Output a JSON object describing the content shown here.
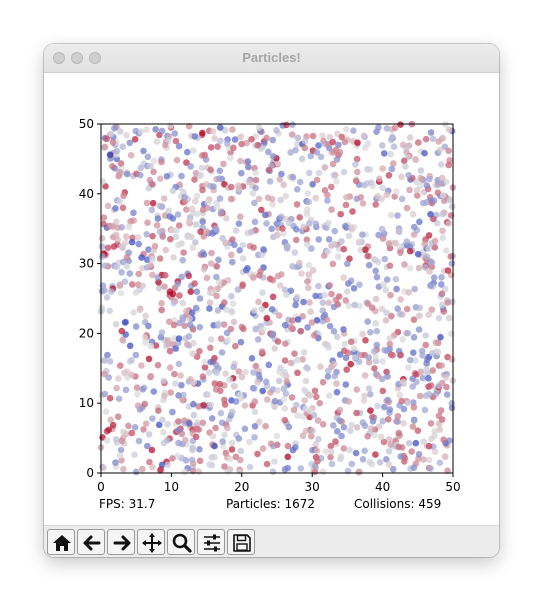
{
  "window": {
    "title": "Particles!"
  },
  "status": {
    "fps": "FPS: 31.7",
    "particles": "Particles: 1672",
    "collisions": "Collisions: 459"
  },
  "toolbar": {
    "items": [
      {
        "name": "home-icon"
      },
      {
        "name": "arrow-left-icon"
      },
      {
        "name": "arrow-right-icon"
      },
      {
        "name": "pan-move-icon"
      },
      {
        "name": "zoom-magnifier-icon"
      },
      {
        "name": "sliders-configure-icon"
      },
      {
        "name": "save-floppy-icon"
      }
    ]
  },
  "chart_data": {
    "type": "scatter",
    "title": "",
    "xlabel": "",
    "ylabel": "",
    "xlim": [
      0,
      50
    ],
    "ylim": [
      0,
      50
    ],
    "x_ticks": [
      "0",
      "10",
      "20",
      "30",
      "40",
      "50"
    ],
    "y_ticks": [
      "0",
      "10",
      "20",
      "30",
      "40",
      "50"
    ],
    "grid": false,
    "colormap": "coolwarm",
    "colors": {
      "cool": "#3b4cc0",
      "mid": "#dddddd",
      "warm": "#b40426"
    },
    "particle_count": 1672
  }
}
